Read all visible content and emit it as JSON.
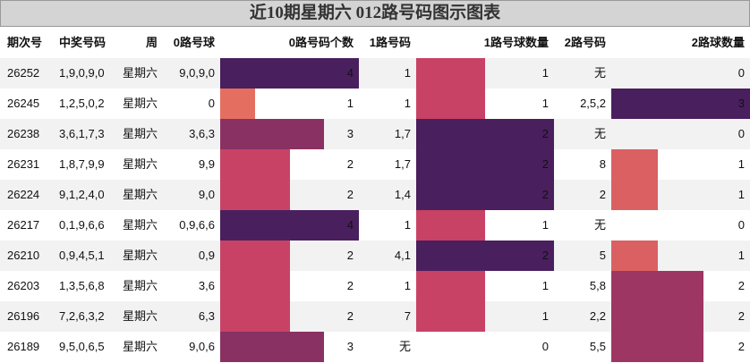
{
  "title": "近10期星期六 012路号码图示图表",
  "table": {
    "columns": [
      "期次号",
      "中奖号码",
      "周",
      "0路号球",
      "0路号码个数",
      "1路号码",
      "1路号球数量",
      "2路号码",
      "2路球数量"
    ],
    "rows": [
      [
        "26252",
        "1,9,0,9,0",
        "星期六",
        "9,0,9,0",
        4,
        "1",
        1,
        "无",
        0
      ],
      [
        "26245",
        "1,2,5,0,2",
        "星期六",
        "0",
        1,
        "1",
        1,
        "2,5,2",
        3
      ],
      [
        "26238",
        "3,6,1,7,3",
        "星期六",
        "3,6,3",
        3,
        "1,7",
        2,
        "无",
        0
      ],
      [
        "26231",
        "1,8,7,9,9",
        "星期六",
        "9,9",
        2,
        "1,7",
        2,
        "8",
        1
      ],
      [
        "26224",
        "9,1,2,4,0",
        "星期六",
        "9,0",
        2,
        "1,4",
        2,
        "2",
        1
      ],
      [
        "26217",
        "0,1,9,6,6",
        "星期六",
        "0,9,6,6",
        4,
        "1",
        1,
        "无",
        0
      ],
      [
        "26210",
        "0,9,4,5,1",
        "星期六",
        "0,9",
        2,
        "4,1",
        2,
        "5",
        1
      ],
      [
        "26203",
        "1,3,5,6,8",
        "星期六",
        "3,6",
        2,
        "1",
        1,
        "5,8",
        2
      ],
      [
        "26196",
        "7,2,6,3,2",
        "星期六",
        "6,3",
        2,
        "7",
        1,
        "2,2",
        2
      ],
      [
        "26189",
        "9,5,0,6,5",
        "星期六",
        "9,0,6",
        3,
        "无",
        0,
        "5,5",
        2
      ]
    ],
    "bar_colors": [
      "#ff9c5a",
      "#c84266",
      "#4a1f5e"
    ]
  }
}
